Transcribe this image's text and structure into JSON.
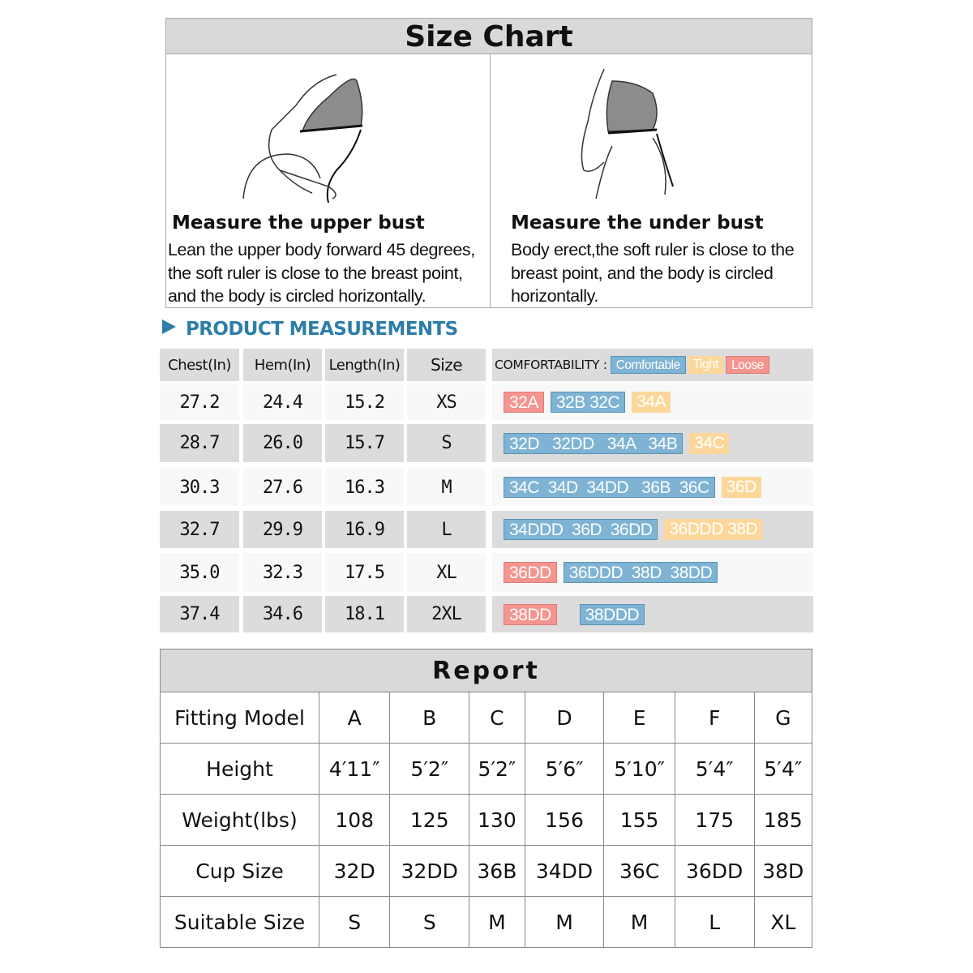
{
  "title": "Size Chart",
  "panels": [
    {
      "heading": "Measure the upper bust",
      "lines": [
        "Lean the upper body forward 45 degrees,",
        "the soft ruler is close to the breast point,",
        "and the body is circled horizontally."
      ]
    },
    {
      "heading": "Measure the under bust",
      "lines": [
        "Body erect,the soft ruler is close to the",
        "breast  point, and the body is circled",
        "horizontally."
      ]
    }
  ],
  "measurements": {
    "heading": "PRODUCT MEASUREMENTS",
    "headers": [
      "Chest(In)",
      "Hem(In)",
      "Length(In)",
      "Size"
    ],
    "comfort_label": "COMFORTABILITY :",
    "legend": {
      "comfortable": "Comfortable",
      "tight": "Tight",
      "loose": "Loose"
    },
    "colors": {
      "comfortable": "#7eb3d3",
      "tight": "#fdd79a",
      "loose": "#f4958f",
      "heading": "#2d7ea8"
    },
    "rows": [
      {
        "chest": "27.2",
        "hem": "24.4",
        "length": "15.2",
        "size": "XS",
        "cups": [
          [
            "loose",
            "32A"
          ],
          [
            "comfortable",
            "32B 32C"
          ],
          [
            "tight",
            "34A"
          ]
        ]
      },
      {
        "chest": "28.7",
        "hem": "26.0",
        "length": "15.7",
        "size": "S",
        "cups": [
          [
            "comfortable",
            "32D   32DD   34A   34B"
          ],
          [
            "tight",
            "34C"
          ]
        ]
      },
      {
        "chest": "30.3",
        "hem": "27.6",
        "length": "16.3",
        "size": "M",
        "cups": [
          [
            "comfortable",
            "34C  34D  34DD   36B  36C"
          ],
          [
            "tight",
            "36D"
          ]
        ]
      },
      {
        "chest": "32.7",
        "hem": "29.9",
        "length": "16.9",
        "size": "L",
        "cups": [
          [
            "comfortable",
            "34DDD  36D  36DD"
          ],
          [
            "tight",
            "36DDD 38D"
          ]
        ]
      },
      {
        "chest": "35.0",
        "hem": "32.3",
        "length": "17.5",
        "size": "XL",
        "cups": [
          [
            "loose",
            "36DD"
          ],
          [
            "comfortable",
            "36DDD  38D  38DD"
          ]
        ]
      },
      {
        "chest": "37.4",
        "hem": "34.6",
        "length": "18.1",
        "size": "2XL",
        "cups": [
          [
            "loose",
            "38DD"
          ],
          [
            "comfortable",
            "38DDD"
          ]
        ]
      }
    ]
  },
  "report": {
    "title": "Report",
    "rows": [
      {
        "label": "Fitting Model",
        "values": [
          "A",
          "B",
          "C",
          "D",
          "E",
          "F",
          "G"
        ]
      },
      {
        "label": "Height",
        "values": [
          "4′11″",
          "5′2″",
          "5′2″",
          "5′6″",
          "5′10″",
          "5′4″",
          "5′4″"
        ]
      },
      {
        "label": "Weight(lbs)",
        "values": [
          "108",
          "125",
          "130",
          "156",
          "155",
          "175",
          "185"
        ]
      },
      {
        "label": "Cup Size",
        "values": [
          "32D",
          "32DD",
          "36B",
          "34DD",
          "36C",
          "36DD",
          "38D"
        ]
      },
      {
        "label": "Suitable Size",
        "values": [
          "S",
          "S",
          "M",
          "M",
          "M",
          "L",
          "XL"
        ]
      }
    ]
  }
}
